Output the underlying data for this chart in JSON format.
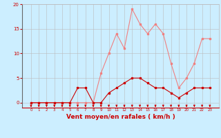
{
  "x": [
    0,
    1,
    2,
    3,
    4,
    5,
    6,
    7,
    8,
    9,
    10,
    11,
    12,
    13,
    14,
    15,
    16,
    17,
    18,
    19,
    20,
    21,
    22,
    23
  ],
  "vent_moyen": [
    0,
    0,
    0,
    0,
    0,
    0,
    3,
    3,
    0,
    0,
    2,
    3,
    4,
    5,
    5,
    4,
    3,
    3,
    2,
    1,
    2,
    3,
    3,
    3
  ],
  "rafales": [
    0,
    0,
    0,
    0,
    0,
    0,
    0,
    0,
    0,
    6,
    10,
    14,
    11,
    19,
    16,
    14,
    16,
    14,
    8,
    3,
    5,
    8,
    13,
    13
  ],
  "color_moyen": "#cc0000",
  "color_rafales": "#f08080",
  "bg_color": "#cceeff",
  "grid_color": "#bbbbbb",
  "xlabel": "Vent moyen/en rafales ( km/h )",
  "xlabel_color": "#cc0000",
  "xlabel_fontsize": 6.5,
  "tick_color": "#cc0000",
  "arrow_color": "#cc0000",
  "ylim": [
    -1,
    20
  ],
  "yticks": [
    0,
    5,
    10,
    15,
    20
  ],
  "xticks": [
    0,
    1,
    2,
    3,
    4,
    5,
    6,
    7,
    8,
    9,
    10,
    11,
    12,
    13,
    14,
    15,
    16,
    17,
    18,
    19,
    20,
    21,
    22,
    23
  ]
}
